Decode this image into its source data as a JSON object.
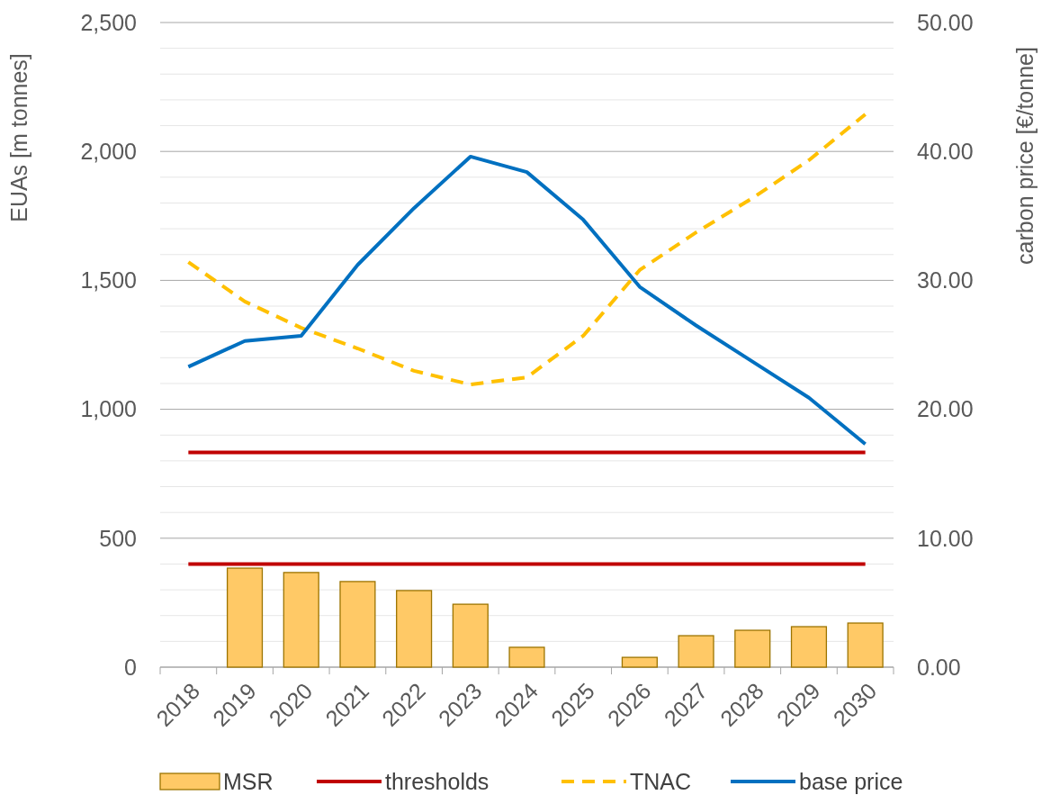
{
  "chart_data": {
    "type": "bar",
    "ylabel": "EUAs [m tonnes]",
    "y2label": "carbon price [€/tonne]",
    "categories": [
      "2018",
      "2019",
      "2020",
      "2021",
      "2022",
      "2023",
      "2024",
      "2025",
      "2026",
      "2027",
      "2028",
      "2029",
      "2030"
    ],
    "series": [
      {
        "name": "MSR",
        "color": "#ffc966",
        "values": [
          null,
          384,
          367,
          332,
          297,
          244,
          77,
          null,
          38,
          122,
          143,
          157,
          171
        ]
      },
      {
        "name": "thresholds",
        "type": "line",
        "color": "#c00000",
        "line_style": "solid",
        "values": [
          833,
          833,
          833,
          833,
          833,
          833,
          833,
          833,
          833,
          833,
          833,
          833,
          833
        ]
      },
      {
        "type": "line",
        "color": "#c00000",
        "line_style": "solid",
        "values": [
          400,
          400,
          400,
          400,
          400,
          400,
          400,
          400,
          400,
          400,
          400,
          400,
          400
        ]
      },
      {
        "name": "TNAC",
        "type": "line",
        "color": "#ffc000",
        "line_style": "dashed",
        "values": [
          1571,
          1418,
          1316,
          1236,
          1149,
          1096,
          1124,
          1285,
          1540,
          1686,
          1819,
          1966,
          2144
        ]
      },
      {
        "name": "base price",
        "type": "line",
        "color": "#0070c0",
        "line_style": "solid",
        "axis": "y2",
        "values": [
          23.3,
          25.3,
          25.7,
          31.2,
          35.6,
          39.6,
          38.4,
          34.7,
          29.5,
          26.5,
          23.7,
          20.9,
          17.3
        ]
      }
    ],
    "ylim": [
      0,
      2500
    ],
    "yticks": [
      0,
      {
        "value": 100,
        "label": null
      },
      {
        "value": 200,
        "label": null
      },
      {
        "value": 300,
        "label": null
      },
      {
        "value": 400,
        "label": null
      },
      500,
      {
        "value": 600,
        "label": null
      },
      {
        "value": 700,
        "label": null
      },
      {
        "value": 800,
        "label": null
      },
      {
        "value": 900,
        "label": null
      },
      {
        "value": 1000,
        "label": "1,000"
      },
      {
        "value": 1100,
        "label": null
      },
      {
        "value": 1200,
        "label": null
      },
      {
        "value": 1300,
        "label": null
      },
      {
        "value": 1400,
        "label": null
      },
      {
        "value": 1500,
        "label": "1,500"
      },
      {
        "value": 1600,
        "label": null
      },
      {
        "value": 1700,
        "label": null
      },
      {
        "value": 1800,
        "label": null
      },
      {
        "value": 1900,
        "label": null
      },
      {
        "value": 2000,
        "label": "2,000"
      },
      {
        "value": 2100,
        "label": null
      },
      {
        "value": 2200,
        "label": null
      },
      {
        "value": 2300,
        "label": null
      },
      {
        "value": 2400,
        "label": null
      },
      {
        "value": 2500,
        "label": "2,500"
      }
    ],
    "y2lim": [
      0,
      50
    ],
    "y2ticks": [
      {
        "value": 0,
        "label": "0.00"
      },
      {
        "value": 10,
        "label": "10.00"
      },
      {
        "value": 20,
        "label": "20.00"
      },
      {
        "value": 30,
        "label": "30.00"
      },
      {
        "value": 40,
        "label": "40.00"
      },
      {
        "value": 50,
        "label": "50.00"
      }
    ],
    "grid": "y",
    "legend": "bottom"
  }
}
